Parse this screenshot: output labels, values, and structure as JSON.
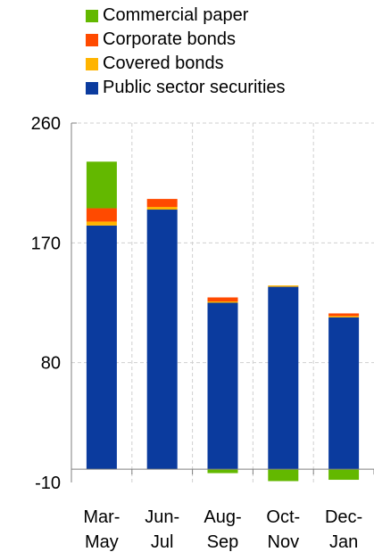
{
  "chart_data": {
    "type": "bar",
    "stacked": true,
    "categories": [
      [
        "Mar-",
        "May"
      ],
      [
        "Jun-",
        "Jul"
      ],
      [
        "Aug-",
        "Sep"
      ],
      [
        "Oct-",
        "Nov"
      ],
      [
        "Dec-",
        "Jan"
      ]
    ],
    "series": [
      {
        "name": "Public sector securities",
        "color": "#0b3b9e",
        "values": [
          183,
          195,
          125,
          137,
          114
        ]
      },
      {
        "name": "Covered bonds",
        "color": "#ffb400",
        "values": [
          3,
          2,
          1,
          1,
          1
        ]
      },
      {
        "name": "Corporate bonds",
        "color": "#ff4a00",
        "values": [
          10,
          6,
          3,
          0,
          2
        ]
      },
      {
        "name": "Commercial paper",
        "color": "#63b800",
        "values": [
          35,
          0,
          -3,
          -9,
          -8
        ]
      }
    ],
    "legend_order": [
      3,
      2,
      1,
      0
    ],
    "legend_position": "top",
    "ylim": [
      -10,
      260
    ],
    "yticks": [
      -10,
      80,
      170,
      260
    ],
    "grid": true,
    "title": "",
    "xlabel": "",
    "ylabel": ""
  }
}
